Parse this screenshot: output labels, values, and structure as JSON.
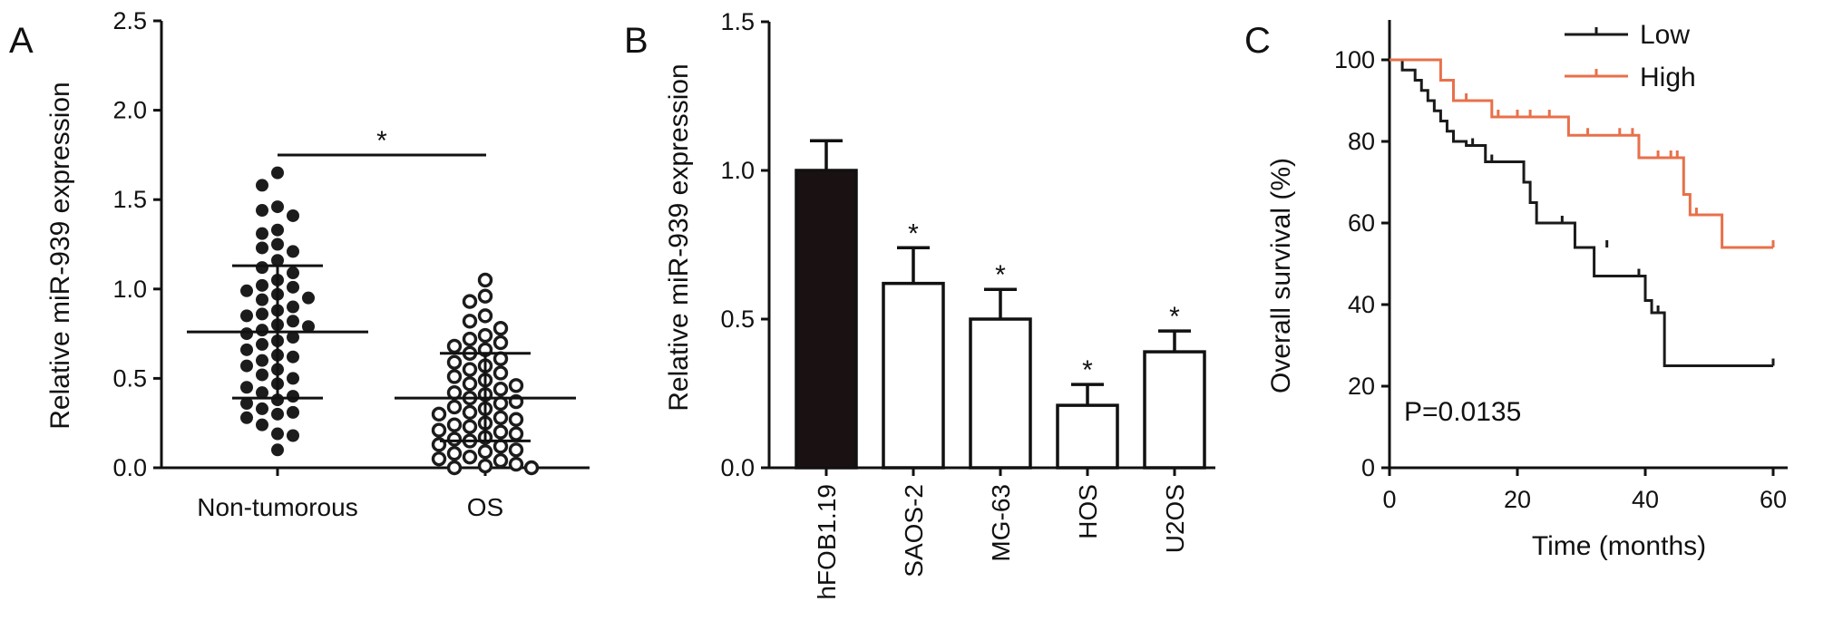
{
  "panels": [
    {
      "letter": "A"
    },
    {
      "letter": "B"
    },
    {
      "letter": "C"
    }
  ],
  "chart_data": [
    {
      "type": "scatter",
      "panel": "A",
      "ylabel": "Relative miR-939 expression",
      "xlabel": "",
      "ylim": [
        0,
        2.5
      ],
      "yticks": [
        "0.0",
        "0.5",
        "1.0",
        "1.5",
        "2.0",
        "2.5"
      ],
      "categories": [
        "Non-tumorous",
        "OS"
      ],
      "significance": "*",
      "series": [
        {
          "category": "Non-tumorous",
          "marker": "filled",
          "mean": 0.76,
          "sd_upper": 1.13,
          "sd_lower": 0.39,
          "values": [
            1.65,
            1.58,
            1.46,
            1.44,
            1.41,
            1.33,
            1.31,
            1.25,
            1.23,
            1.21,
            1.16,
            1.12,
            1.09,
            1.05,
            1.02,
            1.01,
            0.99,
            0.97,
            0.95,
            0.94,
            0.9,
            0.88,
            0.86,
            0.85,
            0.82,
            0.8,
            0.79,
            0.77,
            0.75,
            0.73,
            0.71,
            0.69,
            0.66,
            0.63,
            0.62,
            0.6,
            0.57,
            0.55,
            0.52,
            0.5,
            0.47,
            0.45,
            0.42,
            0.4,
            0.38,
            0.36,
            0.33,
            0.31,
            0.3,
            0.28,
            0.24,
            0.19,
            0.18,
            0.1
          ]
        },
        {
          "category": "OS",
          "marker": "open",
          "mean": 0.39,
          "sd_upper": 0.64,
          "sd_lower": 0.15,
          "values": [
            1.05,
            0.96,
            0.93,
            0.85,
            0.82,
            0.78,
            0.74,
            0.72,
            0.7,
            0.68,
            0.66,
            0.64,
            0.61,
            0.59,
            0.57,
            0.55,
            0.53,
            0.51,
            0.49,
            0.47,
            0.46,
            0.44,
            0.42,
            0.41,
            0.39,
            0.37,
            0.36,
            0.34,
            0.33,
            0.31,
            0.3,
            0.28,
            0.27,
            0.25,
            0.24,
            0.23,
            0.21,
            0.2,
            0.19,
            0.17,
            0.16,
            0.15,
            0.13,
            0.12,
            0.1,
            0.09,
            0.08,
            0.06,
            0.05,
            0.04,
            0.02,
            0.01,
            0.0,
            0.0
          ]
        }
      ]
    },
    {
      "type": "bar",
      "panel": "B",
      "ylabel": "Relative miR-939 expression",
      "ylim": [
        0,
        1.5
      ],
      "yticks": [
        "0.0",
        "0.5",
        "1.0",
        "1.5"
      ],
      "categories": [
        "hFOB1.19",
        "SAOS-2",
        "MG-63",
        "HOS",
        "U2OS"
      ],
      "values": [
        1.0,
        0.62,
        0.5,
        0.21,
        0.39
      ],
      "errors": [
        0.1,
        0.12,
        0.1,
        0.07,
        0.07
      ],
      "fills": [
        "#1a1212",
        "#ffffff",
        "#ffffff",
        "#ffffff",
        "#ffffff"
      ],
      "significance": [
        "",
        "*",
        "*",
        "*",
        "*"
      ]
    },
    {
      "type": "line",
      "subtype": "kaplan-meier",
      "panel": "C",
      "xlabel": "Time (months)",
      "ylabel": "Overall survival (%)",
      "xlim": [
        0,
        60
      ],
      "ylim": [
        0,
        100
      ],
      "xticks": [
        "0",
        "20",
        "40",
        "60"
      ],
      "yticks": [
        "0",
        "20",
        "40",
        "60",
        "80",
        "100"
      ],
      "annotation": "P=0.0135",
      "legend_position": "top-right",
      "series": [
        {
          "name": "Low",
          "color": "#1a1a1a",
          "steps": [
            [
              0,
              100
            ],
            [
              2,
              97.5
            ],
            [
              4,
              95
            ],
            [
              5,
              92.5
            ],
            [
              6,
              90
            ],
            [
              7,
              87.5
            ],
            [
              8,
              85
            ],
            [
              9,
              82.5
            ],
            [
              10,
              80
            ],
            [
              12,
              79
            ],
            [
              15,
              75
            ],
            [
              21,
              70
            ],
            [
              22,
              65
            ],
            [
              23,
              60
            ],
            [
              29,
              54
            ],
            [
              32,
              47
            ],
            [
              40,
              41
            ],
            [
              41,
              38
            ],
            [
              43,
              25
            ],
            [
              60,
              25
            ]
          ],
          "censored": [
            [
              13,
              79
            ],
            [
              16,
              75
            ],
            [
              27,
              60
            ],
            [
              34,
              54
            ],
            [
              39,
              47
            ],
            [
              42,
              38
            ],
            [
              60,
              25
            ]
          ]
        },
        {
          "name": "High",
          "color": "#e8704a",
          "steps": [
            [
              0,
              100
            ],
            [
              8,
              95
            ],
            [
              10,
              90
            ],
            [
              16,
              86
            ],
            [
              28,
              81.5
            ],
            [
              39,
              76
            ],
            [
              46,
              67
            ],
            [
              47,
              62
            ],
            [
              52,
              54
            ],
            [
              60,
              54
            ]
          ],
          "censored": [
            [
              12,
              90
            ],
            [
              17,
              86
            ],
            [
              20,
              86
            ],
            [
              22,
              86
            ],
            [
              25,
              86
            ],
            [
              31,
              81.5
            ],
            [
              36,
              81.5
            ],
            [
              38,
              81.5
            ],
            [
              42,
              76
            ],
            [
              44,
              76
            ],
            [
              45,
              76
            ],
            [
              48,
              62
            ],
            [
              60,
              54
            ]
          ]
        }
      ]
    }
  ]
}
